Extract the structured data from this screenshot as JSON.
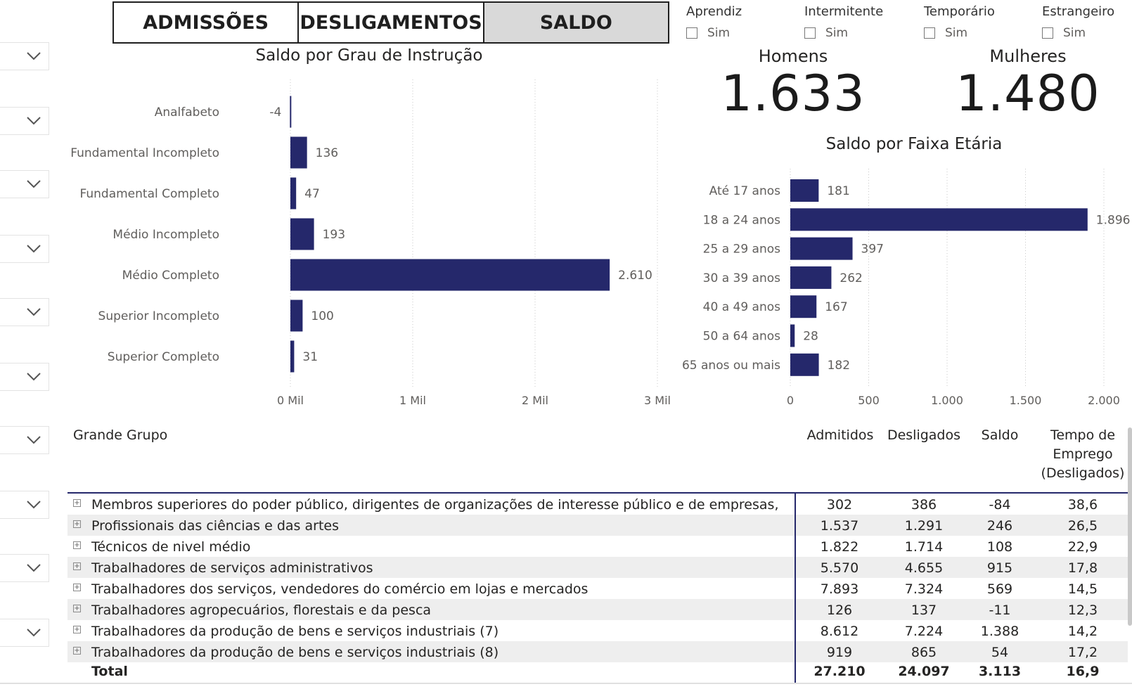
{
  "tabs": [
    "ADMISSÕES",
    "DESLIGAMENTOS",
    "SALDO"
  ],
  "active_tab": "SALDO",
  "filters": [
    {
      "label": "Aprendiz",
      "option": "Sim"
    },
    {
      "label": "Intermitente",
      "option": "Sim"
    },
    {
      "label": "Temporário",
      "option": "Sim"
    },
    {
      "label": "Estrangeiro",
      "option": "Sim"
    }
  ],
  "kpis": {
    "homens": {
      "label": "Homens",
      "value": "1.633"
    },
    "mulheres": {
      "label": "Mulheres",
      "value": "1.480"
    }
  },
  "chart_data": [
    {
      "type": "bar",
      "orientation": "horizontal",
      "title": "Saldo por Grau de Instrução",
      "categories": [
        "Analfabeto",
        "Fundamental Incompleto",
        "Fundamental Completo",
        "Médio Incompleto",
        "Médio Completo",
        "Superior Incompleto",
        "Superior Completo"
      ],
      "values": [
        -4,
        136,
        47,
        193,
        2610,
        100,
        31
      ],
      "data_labels": [
        "-4",
        "136",
        "47",
        "193",
        "2.610",
        "100",
        "31"
      ],
      "xticks": [
        "0 Mil",
        "1 Mil",
        "2 Mil",
        "3 Mil"
      ],
      "xlim": [
        0,
        3000
      ],
      "grid": true,
      "color": "#25286b"
    },
    {
      "type": "bar",
      "orientation": "horizontal",
      "title": "Saldo por Faixa Etária",
      "categories": [
        "Até 17 anos",
        "18 a 24 anos",
        "25 a 29 anos",
        "30 a 39 anos",
        "40 a 49 anos",
        "50 a 64 anos",
        "65 anos ou mais"
      ],
      "values": [
        181,
        1896,
        397,
        262,
        167,
        28,
        182
      ],
      "data_labels": [
        "181",
        "1.896",
        "397",
        "262",
        "167",
        "28",
        "182"
      ],
      "xticks": [
        "0",
        "500",
        "1.000",
        "1.500",
        "2.000"
      ],
      "xlim": [
        0,
        2000
      ],
      "grid": true,
      "color": "#25286b"
    }
  ],
  "table": {
    "headers": {
      "grupo": "Grande Grupo",
      "admitidos": "Admitidos",
      "desligados": "Desligados",
      "saldo": "Saldo",
      "tempo": [
        "Tempo de",
        "Emprego",
        "(Desligados)"
      ]
    },
    "rows": [
      {
        "grupo": "Membros superiores do poder público, dirigentes de organizações de interesse público e de empresas,",
        "admitidos": "302",
        "desligados": "386",
        "saldo": "-84",
        "tempo": "38,6"
      },
      {
        "grupo": "Profissionais das ciências e das artes",
        "admitidos": "1.537",
        "desligados": "1.291",
        "saldo": "246",
        "tempo": "26,5"
      },
      {
        "grupo": "Técnicos de nivel médio",
        "admitidos": "1.822",
        "desligados": "1.714",
        "saldo": "108",
        "tempo": "22,9"
      },
      {
        "grupo": "Trabalhadores de serviços administrativos",
        "admitidos": "5.570",
        "desligados": "4.655",
        "saldo": "915",
        "tempo": "17,8"
      },
      {
        "grupo": "Trabalhadores dos serviços, vendedores do comércio em lojas e mercados",
        "admitidos": "7.893",
        "desligados": "7.324",
        "saldo": "569",
        "tempo": "14,5"
      },
      {
        "grupo": "Trabalhadores agropecuários, florestais e da pesca",
        "admitidos": "126",
        "desligados": "137",
        "saldo": "-11",
        "tempo": "12,3"
      },
      {
        "grupo": "Trabalhadores da produção de bens e serviços industriais (7)",
        "admitidos": "8.612",
        "desligados": "7.224",
        "saldo": "1.388",
        "tempo": "14,2"
      },
      {
        "grupo": "Trabalhadores da produção de bens e serviços industriais (8)",
        "admitidos": "919",
        "desligados": "865",
        "saldo": "54",
        "tempo": "17,2"
      }
    ],
    "total": {
      "label": "Total",
      "admitidos": "27.210",
      "desligados": "24.097",
      "saldo": "3.113",
      "tempo": "16,9"
    }
  }
}
